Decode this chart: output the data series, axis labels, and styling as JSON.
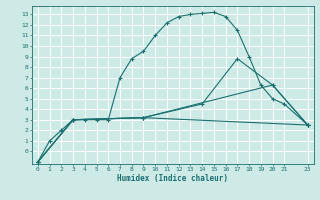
{
  "bg_color": "#ceeae7",
  "grid_color": "#ffffff",
  "line_color": "#1a7070",
  "xlabel": "Humidex (Indice chaleur)",
  "xlim": [
    -0.5,
    23.5
  ],
  "ylim": [
    -1.2,
    13.8
  ],
  "xticks": [
    0,
    1,
    2,
    3,
    4,
    5,
    6,
    7,
    8,
    9,
    10,
    11,
    12,
    13,
    14,
    15,
    16,
    17,
    18,
    19,
    20,
    21,
    23
  ],
  "yticks": [
    0,
    1,
    2,
    3,
    4,
    5,
    6,
    7,
    8,
    9,
    10,
    11,
    12,
    13
  ],
  "series1_x": [
    0,
    1,
    2,
    3,
    4,
    5,
    6,
    7,
    8,
    9,
    10,
    11,
    12,
    13,
    14,
    15,
    16,
    17,
    18,
    19,
    20,
    21,
    23
  ],
  "series1_y": [
    -1,
    1,
    2,
    3,
    3,
    3,
    3,
    7,
    8.8,
    9.5,
    11,
    12.2,
    12.8,
    13,
    13.1,
    13.2,
    12.8,
    11.5,
    9,
    6.3,
    5,
    4.5,
    2.5
  ],
  "series2_x": [
    0,
    3,
    9,
    14,
    17,
    20,
    23
  ],
  "series2_y": [
    -1,
    3,
    3.2,
    4.5,
    8.8,
    6.3,
    2.5
  ],
  "series3_x": [
    0,
    3,
    9,
    20,
    23
  ],
  "series3_y": [
    -1,
    3,
    3.2,
    6.3,
    2.5
  ],
  "series4_x": [
    0,
    3,
    9,
    23
  ],
  "series4_y": [
    -1,
    3,
    3.2,
    2.5
  ]
}
